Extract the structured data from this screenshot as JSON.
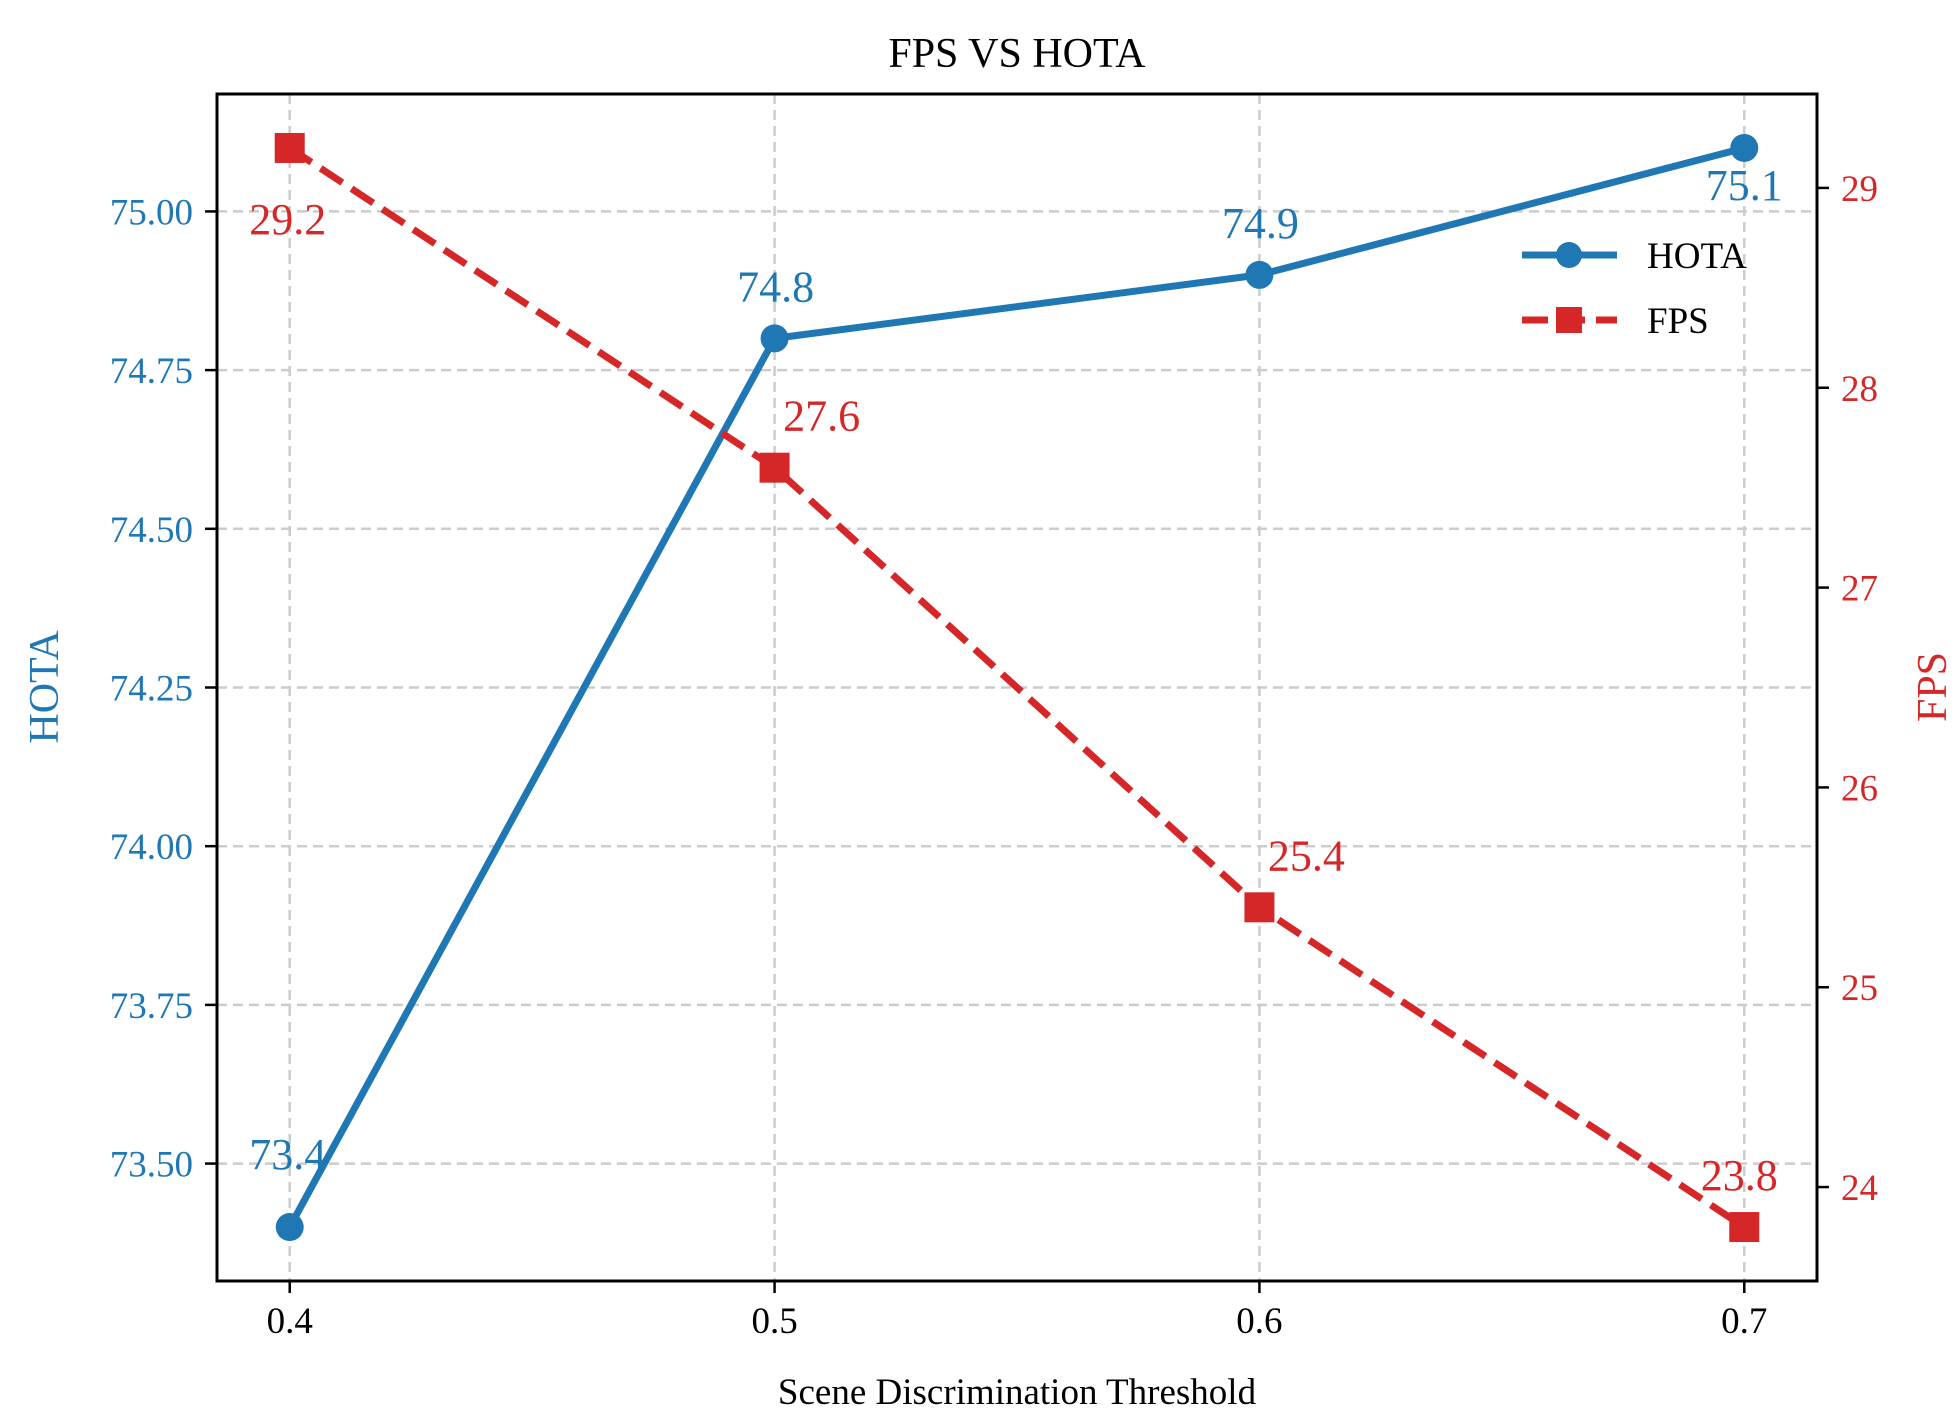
{
  "chart_data": {
    "type": "line",
    "title": "FPS VS HOTA",
    "xlabel": "Scene Discrimination Threshold",
    "x": [
      0.4,
      0.5,
      0.6,
      0.7
    ],
    "x_tick_labels": [
      "0.4",
      "0.5",
      "0.6",
      "0.7"
    ],
    "xlim": [
      0.385,
      0.715
    ],
    "y_left": {
      "label": "HOTA",
      "color": "#1f77b4",
      "ylim": [
        73.315,
        75.185
      ],
      "ticks": [
        73.5,
        73.75,
        74.0,
        74.25,
        74.5,
        74.75,
        75.0
      ],
      "tick_labels": [
        "73.50",
        "73.75",
        "74.00",
        "74.25",
        "74.50",
        "74.75",
        "75.00"
      ]
    },
    "y_right": {
      "label": "FPS",
      "color": "#d62728",
      "ylim": [
        23.53,
        29.47
      ],
      "ticks": [
        24,
        25,
        26,
        27,
        28,
        29
      ],
      "tick_labels": [
        "24",
        "25",
        "26",
        "27",
        "28",
        "29"
      ]
    },
    "series": [
      {
        "name": "HOTA",
        "axis": "left",
        "color": "#1f77b4",
        "marker": "circle",
        "linestyle": "solid",
        "values": [
          73.4,
          74.8,
          74.9,
          75.1
        ],
        "labels": [
          "73.4",
          "74.8",
          "74.9",
          "75.1"
        ]
      },
      {
        "name": "FPS",
        "axis": "right",
        "color": "#d62728",
        "marker": "square",
        "linestyle": "dashed",
        "values": [
          29.2,
          27.6,
          25.4,
          23.8
        ],
        "labels": [
          "29.2",
          "27.6",
          "25.4",
          "23.8"
        ]
      }
    ],
    "grid": true,
    "legend_position": "upper-right"
  }
}
